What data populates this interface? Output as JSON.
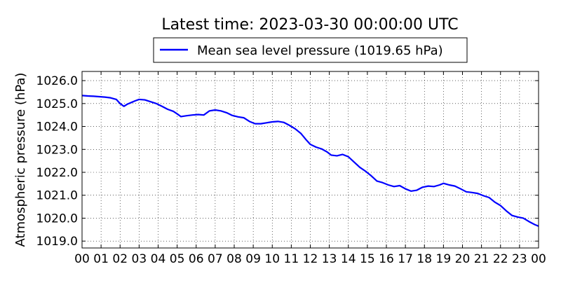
{
  "chart_data": {
    "type": "line",
    "title": "Latest time: 2023-03-30 00:00:00 UTC",
    "xlabel": "",
    "ylabel": "Atmospheric pressure (hPa)",
    "ylim": [
      1018.7,
      1026.4
    ],
    "xlim": [
      0,
      24
    ],
    "grid": true,
    "legend_position": "top-center",
    "x_tick_labels": [
      "00",
      "01",
      "02",
      "03",
      "04",
      "05",
      "06",
      "07",
      "08",
      "09",
      "10",
      "11",
      "12",
      "13",
      "14",
      "15",
      "16",
      "17",
      "18",
      "19",
      "20",
      "21",
      "22",
      "23",
      "00"
    ],
    "y_ticks": [
      1019.0,
      1020.0,
      1021.0,
      1022.0,
      1023.0,
      1024.0,
      1025.0,
      1026.0
    ],
    "y_tick_labels": [
      "1019.0",
      "1020.0",
      "1021.0",
      "1022.0",
      "1023.0",
      "1024.0",
      "1025.0",
      "1026.0"
    ],
    "series": [
      {
        "name": "Mean sea level pressure (1019.65 hPa)",
        "color": "#0000ff",
        "points": [
          [
            0.0,
            1025.35
          ],
          [
            0.3,
            1025.33
          ],
          [
            0.6,
            1025.32
          ],
          [
            0.9,
            1025.3
          ],
          [
            1.2,
            1025.28
          ],
          [
            1.5,
            1025.25
          ],
          [
            1.8,
            1025.18
          ],
          [
            2.0,
            1025.0
          ],
          [
            2.2,
            1024.88
          ],
          [
            2.4,
            1024.98
          ],
          [
            2.6,
            1025.05
          ],
          [
            2.8,
            1025.12
          ],
          [
            3.0,
            1025.18
          ],
          [
            3.3,
            1025.16
          ],
          [
            3.6,
            1025.08
          ],
          [
            3.9,
            1025.0
          ],
          [
            4.2,
            1024.88
          ],
          [
            4.5,
            1024.75
          ],
          [
            4.8,
            1024.66
          ],
          [
            5.0,
            1024.55
          ],
          [
            5.2,
            1024.43
          ],
          [
            5.5,
            1024.47
          ],
          [
            5.8,
            1024.5
          ],
          [
            6.1,
            1024.52
          ],
          [
            6.4,
            1024.5
          ],
          [
            6.7,
            1024.68
          ],
          [
            7.0,
            1024.72
          ],
          [
            7.3,
            1024.68
          ],
          [
            7.6,
            1024.6
          ],
          [
            7.9,
            1024.48
          ],
          [
            8.2,
            1024.42
          ],
          [
            8.5,
            1024.38
          ],
          [
            8.8,
            1024.22
          ],
          [
            9.1,
            1024.12
          ],
          [
            9.4,
            1024.12
          ],
          [
            9.7,
            1024.16
          ],
          [
            10.0,
            1024.2
          ],
          [
            10.3,
            1024.22
          ],
          [
            10.6,
            1024.18
          ],
          [
            10.9,
            1024.05
          ],
          [
            11.2,
            1023.9
          ],
          [
            11.5,
            1023.7
          ],
          [
            11.8,
            1023.4
          ],
          [
            12.0,
            1023.22
          ],
          [
            12.3,
            1023.1
          ],
          [
            12.6,
            1023.02
          ],
          [
            12.9,
            1022.88
          ],
          [
            13.1,
            1022.75
          ],
          [
            13.4,
            1022.72
          ],
          [
            13.7,
            1022.78
          ],
          [
            14.0,
            1022.68
          ],
          [
            14.3,
            1022.45
          ],
          [
            14.6,
            1022.22
          ],
          [
            14.9,
            1022.05
          ],
          [
            15.2,
            1021.85
          ],
          [
            15.5,
            1021.62
          ],
          [
            15.8,
            1021.55
          ],
          [
            16.1,
            1021.45
          ],
          [
            16.4,
            1021.38
          ],
          [
            16.7,
            1021.42
          ],
          [
            17.0,
            1021.28
          ],
          [
            17.3,
            1021.18
          ],
          [
            17.6,
            1021.22
          ],
          [
            17.9,
            1021.35
          ],
          [
            18.2,
            1021.4
          ],
          [
            18.5,
            1021.38
          ],
          [
            18.8,
            1021.45
          ],
          [
            19.0,
            1021.52
          ],
          [
            19.3,
            1021.45
          ],
          [
            19.6,
            1021.4
          ],
          [
            19.9,
            1021.28
          ],
          [
            20.2,
            1021.15
          ],
          [
            20.5,
            1021.12
          ],
          [
            20.8,
            1021.08
          ],
          [
            21.1,
            1020.98
          ],
          [
            21.4,
            1020.9
          ],
          [
            21.7,
            1020.7
          ],
          [
            22.0,
            1020.55
          ],
          [
            22.3,
            1020.32
          ],
          [
            22.6,
            1020.12
          ],
          [
            22.9,
            1020.05
          ],
          [
            23.2,
            1020.0
          ],
          [
            23.5,
            1019.85
          ],
          [
            23.8,
            1019.72
          ],
          [
            24.0,
            1019.65
          ]
        ]
      }
    ]
  }
}
